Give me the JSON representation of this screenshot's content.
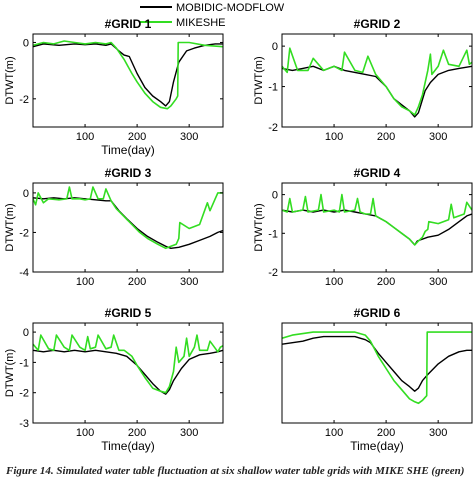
{
  "legend": {
    "entries": [
      {
        "label": "MOBIDIC-MODFLOW",
        "color": "#000000"
      },
      {
        "label": "MIKESHE",
        "color": "#33dd22"
      }
    ]
  },
  "caption": "Figure 14. Simulated water table fluctuation at six shallow water table grids with MIKE SHE (green)",
  "chart_data": [
    {
      "type": "line",
      "title": "#GRID 1",
      "xlabel": "Time(day)",
      "ylabel": "DTWT(m)",
      "xlim": [
        0,
        365
      ],
      "ylim": [
        -3,
        0.3
      ],
      "xticks": [
        100,
        200,
        300
      ],
      "yticks": [
        -2,
        0
      ],
      "series": [
        {
          "name": "MOBIDIC-MODFLOW",
          "color": "#000000",
          "x": [
            0,
            20,
            50,
            80,
            100,
            120,
            140,
            150,
            165,
            175,
            185,
            200,
            215,
            230,
            245,
            255,
            262,
            270,
            280,
            295,
            310,
            330,
            350,
            365
          ],
          "y": [
            -0.15,
            -0.05,
            -0.1,
            -0.05,
            -0.08,
            -0.05,
            -0.1,
            -0.05,
            -0.3,
            -0.45,
            -0.5,
            -1.1,
            -1.6,
            -1.9,
            -2.1,
            -2.25,
            -2.1,
            -1.4,
            -0.7,
            -0.3,
            -0.2,
            -0.1,
            -0.05,
            -0.05
          ]
        },
        {
          "name": "MIKESHE",
          "color": "#33dd22",
          "x": [
            0,
            20,
            40,
            60,
            80,
            100,
            120,
            140,
            150,
            160,
            175,
            190,
            200,
            215,
            230,
            245,
            258,
            265,
            275,
            278,
            279,
            300,
            330,
            365
          ],
          "y": [
            -0.1,
            0.0,
            -0.05,
            0.05,
            0.0,
            -0.05,
            0.0,
            -0.05,
            0.0,
            -0.2,
            -0.6,
            -1.1,
            -1.4,
            -1.8,
            -2.1,
            -2.3,
            -2.35,
            -2.25,
            -2.0,
            -1.9,
            0.0,
            0.0,
            -0.1,
            -0.15
          ]
        }
      ]
    },
    {
      "type": "line",
      "title": "#GRID 2",
      "xlabel": "",
      "ylabel": "DTWT(m)",
      "xlim": [
        0,
        365
      ],
      "ylim": [
        -2,
        0.3
      ],
      "xticks": [
        100,
        200,
        300
      ],
      "yticks": [
        -2,
        -1,
        0
      ],
      "series": [
        {
          "name": "MOBIDIC-MODFLOW",
          "color": "#000000",
          "x": [
            0,
            20,
            40,
            60,
            80,
            100,
            120,
            140,
            160,
            180,
            200,
            215,
            230,
            245,
            255,
            262,
            268,
            275,
            285,
            300,
            320,
            340,
            365
          ],
          "y": [
            -0.55,
            -0.6,
            -0.55,
            -0.5,
            -0.6,
            -0.5,
            -0.6,
            -0.65,
            -0.7,
            -0.75,
            -1.0,
            -1.3,
            -1.45,
            -1.6,
            -1.75,
            -1.65,
            -1.4,
            -1.1,
            -0.9,
            -0.7,
            -0.6,
            -0.55,
            -0.5
          ]
        },
        {
          "name": "MIKESHE",
          "color": "#33dd22",
          "x": [
            0,
            10,
            15,
            30,
            50,
            60,
            80,
            100,
            115,
            120,
            140,
            155,
            165,
            180,
            200,
            215,
            230,
            245,
            255,
            262,
            270,
            280,
            285,
            288,
            300,
            310,
            320,
            340,
            355,
            360,
            365
          ],
          "y": [
            -0.5,
            -0.65,
            -0.05,
            -0.6,
            -0.6,
            -0.3,
            -0.6,
            -0.5,
            -0.6,
            -0.15,
            -0.6,
            -0.65,
            -0.25,
            -0.7,
            -1.0,
            -1.3,
            -1.5,
            -1.6,
            -1.7,
            -1.5,
            -1.2,
            -0.6,
            -0.2,
            -0.7,
            -0.5,
            -0.1,
            -0.45,
            -0.5,
            -0.1,
            -0.45,
            -0.4
          ]
        }
      ]
    },
    {
      "type": "line",
      "title": "#GRID 3",
      "xlabel": "",
      "ylabel": "DTWT(m)",
      "xlim": [
        0,
        365
      ],
      "ylim": [
        -4,
        0.5
      ],
      "xticks": [
        100,
        200,
        300
      ],
      "yticks": [
        -4,
        -2,
        0
      ],
      "series": [
        {
          "name": "MOBIDIC-MODFLOW",
          "color": "#000000",
          "x": [
            0,
            20,
            40,
            60,
            80,
            100,
            120,
            140,
            150,
            165,
            180,
            200,
            220,
            240,
            255,
            265,
            280,
            300,
            320,
            340,
            355,
            365
          ],
          "y": [
            -0.25,
            -0.3,
            -0.25,
            -0.3,
            -0.25,
            -0.3,
            -0.35,
            -0.4,
            -0.4,
            -0.9,
            -1.3,
            -1.8,
            -2.2,
            -2.5,
            -2.7,
            -2.8,
            -2.75,
            -2.6,
            -2.4,
            -2.2,
            -2.0,
            -1.9
          ]
        },
        {
          "name": "MIKESHE",
          "color": "#33dd22",
          "x": [
            0,
            5,
            10,
            20,
            30,
            50,
            65,
            70,
            75,
            90,
            100,
            110,
            115,
            125,
            135,
            140,
            150,
            160,
            175,
            190,
            205,
            220,
            240,
            255,
            265,
            275,
            280,
            282,
            300,
            320,
            335,
            340,
            350,
            355,
            365
          ],
          "y": [
            -0.3,
            -0.6,
            0.0,
            -0.5,
            -0.3,
            -0.35,
            -0.3,
            0.3,
            -0.3,
            -0.3,
            -0.35,
            -0.3,
            0.3,
            -0.3,
            -0.3,
            0.2,
            -0.4,
            -0.8,
            -1.2,
            -1.6,
            -2.0,
            -2.3,
            -2.6,
            -2.8,
            -2.7,
            -2.6,
            -2.3,
            -1.5,
            -1.8,
            -1.6,
            -0.5,
            -0.9,
            -0.3,
            0.0,
            0.0
          ]
        }
      ]
    },
    {
      "type": "line",
      "title": "#GRID 4",
      "xlabel": "",
      "ylabel": "DTWT(m)",
      "xlim": [
        0,
        365
      ],
      "ylim": [
        -2,
        0.3
      ],
      "xticks": [
        100,
        200,
        300
      ],
      "yticks": [
        -2,
        -1,
        0
      ],
      "series": [
        {
          "name": "MOBIDIC-MODFLOW",
          "color": "#000000",
          "x": [
            0,
            20,
            40,
            60,
            80,
            100,
            120,
            140,
            160,
            180,
            200,
            215,
            230,
            245,
            255,
            260,
            270,
            280,
            300,
            320,
            340,
            355,
            365
          ],
          "y": [
            -0.4,
            -0.45,
            -0.4,
            -0.45,
            -0.4,
            -0.45,
            -0.4,
            -0.45,
            -0.5,
            -0.55,
            -0.7,
            -0.85,
            -1.0,
            -1.15,
            -1.3,
            -1.2,
            -1.15,
            -1.1,
            -1.05,
            -0.9,
            -0.7,
            -0.55,
            -0.5
          ]
        },
        {
          "name": "MIKESHE",
          "color": "#33dd22",
          "x": [
            0,
            10,
            15,
            20,
            40,
            45,
            50,
            70,
            75,
            80,
            100,
            110,
            115,
            120,
            140,
            145,
            150,
            160,
            170,
            175,
            180,
            200,
            215,
            230,
            245,
            255,
            262,
            270,
            275,
            280,
            282,
            300,
            320,
            325,
            330,
            350,
            355,
            365
          ],
          "y": [
            -0.4,
            -0.45,
            -0.1,
            -0.45,
            -0.4,
            -0.05,
            -0.45,
            -0.4,
            0.0,
            -0.45,
            -0.4,
            -0.45,
            0.0,
            -0.45,
            -0.4,
            -0.1,
            -0.45,
            -0.5,
            -0.5,
            -0.1,
            -0.55,
            -0.7,
            -0.85,
            -1.0,
            -1.15,
            -1.3,
            -1.2,
            -1.1,
            -0.95,
            -0.9,
            -0.7,
            -0.75,
            -0.65,
            -0.25,
            -0.6,
            -0.5,
            -0.2,
            -0.4
          ]
        }
      ]
    },
    {
      "type": "line",
      "title": "#GRID 5",
      "xlabel": "Time(day)",
      "ylabel": "DTWT(m)",
      "xlim": [
        0,
        365
      ],
      "ylim": [
        -3,
        0.3
      ],
      "xticks": [
        100,
        200,
        300
      ],
      "yticks": [
        -3,
        -2,
        -1,
        0
      ],
      "series": [
        {
          "name": "MOBIDIC-MODFLOW",
          "color": "#000000",
          "x": [
            0,
            20,
            40,
            60,
            80,
            100,
            120,
            140,
            160,
            180,
            200,
            215,
            230,
            245,
            255,
            262,
            270,
            285,
            300,
            320,
            340,
            355,
            365
          ],
          "y": [
            -0.6,
            -0.65,
            -0.6,
            -0.65,
            -0.6,
            -0.65,
            -0.6,
            -0.65,
            -0.7,
            -0.8,
            -1.1,
            -1.4,
            -1.7,
            -1.95,
            -2.05,
            -1.9,
            -1.6,
            -1.2,
            -0.9,
            -0.75,
            -0.7,
            -0.65,
            -0.6
          ]
        },
        {
          "name": "MIKESHE",
          "color": "#33dd22",
          "x": [
            0,
            10,
            15,
            30,
            40,
            45,
            60,
            70,
            75,
            90,
            100,
            105,
            110,
            120,
            125,
            140,
            150,
            155,
            165,
            175,
            190,
            200,
            215,
            230,
            245,
            255,
            262,
            270,
            275,
            280,
            290,
            295,
            300,
            310,
            315,
            320,
            335,
            340,
            355,
            360,
            365
          ],
          "y": [
            -0.4,
            -0.6,
            -0.1,
            -0.55,
            -0.6,
            -0.1,
            -0.5,
            -0.6,
            -0.1,
            -0.5,
            -0.6,
            -0.15,
            -0.55,
            -0.5,
            -0.1,
            -0.55,
            -0.5,
            -0.1,
            -0.6,
            -0.6,
            -0.8,
            -1.1,
            -1.5,
            -1.85,
            -1.95,
            -2.0,
            -1.8,
            -1.3,
            -0.5,
            -1.0,
            -0.8,
            -0.2,
            -0.8,
            -0.5,
            -0.1,
            -0.6,
            -0.6,
            -0.3,
            -0.65,
            -0.5,
            -0.45
          ]
        }
      ]
    },
    {
      "type": "line",
      "title": "#GRID 6",
      "xlabel": "Time(day)",
      "ylabel": "",
      "xlim": [
        0,
        365
      ],
      "ylim": [
        -3,
        0.3
      ],
      "xticks": [
        100,
        200,
        300
      ],
      "yticks": [],
      "series": [
        {
          "name": "MOBIDIC-MODFLOW",
          "color": "#000000",
          "x": [
            0,
            20,
            40,
            60,
            80,
            100,
            120,
            140,
            150,
            160,
            170,
            185,
            200,
            215,
            230,
            245,
            255,
            262,
            270,
            280,
            300,
            320,
            340,
            355,
            365
          ],
          "y": [
            -0.4,
            -0.35,
            -0.3,
            -0.2,
            -0.15,
            -0.15,
            -0.15,
            -0.15,
            -0.2,
            -0.25,
            -0.35,
            -0.7,
            -1.0,
            -1.3,
            -1.6,
            -1.8,
            -1.95,
            -1.85,
            -1.6,
            -1.4,
            -1.05,
            -0.8,
            -0.65,
            -0.6,
            -0.6
          ]
        },
        {
          "name": "MIKESHE",
          "color": "#33dd22",
          "x": [
            0,
            20,
            40,
            60,
            80,
            100,
            120,
            140,
            150,
            160,
            170,
            185,
            200,
            215,
            230,
            245,
            255,
            262,
            270,
            278,
            279,
            300,
            330,
            365
          ],
          "y": [
            -0.2,
            -0.1,
            -0.05,
            0.0,
            0.0,
            0.0,
            0.0,
            0.0,
            -0.05,
            -0.1,
            -0.3,
            -0.8,
            -1.2,
            -1.6,
            -1.9,
            -2.2,
            -2.3,
            -2.35,
            -2.25,
            -2.1,
            0.0,
            0.0,
            0.0,
            0.0
          ]
        }
      ]
    }
  ]
}
